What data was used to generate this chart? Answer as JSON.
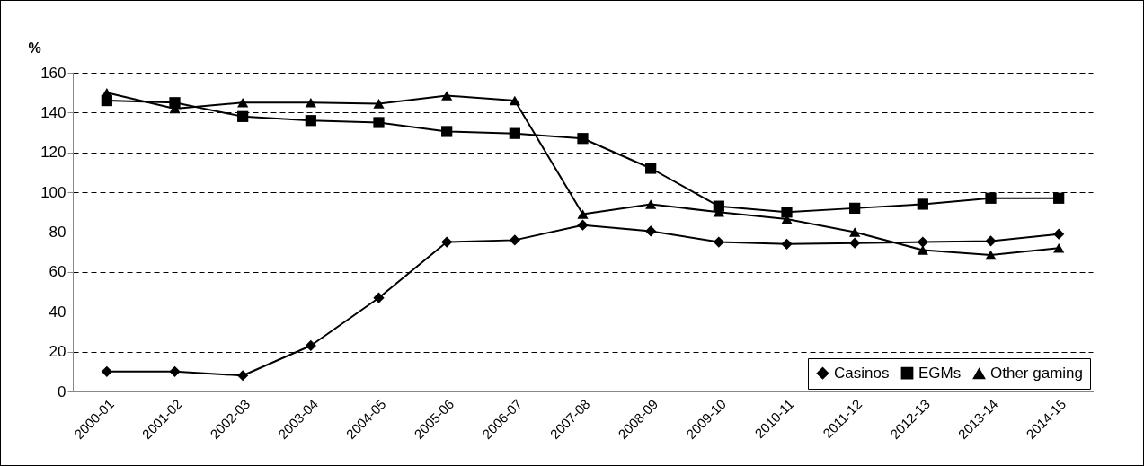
{
  "chart_data": {
    "type": "line",
    "ylabel": "%",
    "categories": [
      "2000-01",
      "2001-02",
      "2002-03",
      "2003-04",
      "2004-05",
      "2005-06",
      "2006-07",
      "2007-08",
      "2008-09",
      "2009-10",
      "2010-11",
      "2011-12",
      "2012-13",
      "2013-14",
      "2014-15"
    ],
    "series": [
      {
        "name": "Casinos",
        "color": "#000000",
        "marker": "diamond",
        "values": [
          10,
          10,
          8,
          23,
          47,
          75,
          76,
          83.5,
          80.5,
          75,
          74,
          74.5,
          75,
          75.5,
          79
        ]
      },
      {
        "name": "EGMs",
        "color": "#000000",
        "marker": "square",
        "values": [
          146,
          145,
          138,
          136,
          135,
          130.5,
          129.5,
          127,
          112,
          93,
          90,
          92,
          94,
          97,
          97
        ]
      },
      {
        "name": "Other gaming",
        "color": "#000000",
        "marker": "triangle",
        "values": [
          150,
          142,
          145,
          145,
          144.5,
          148.5,
          146,
          89,
          94,
          90,
          86.5,
          80,
          71,
          68.5,
          72
        ]
      }
    ],
    "ylim": [
      0,
      160
    ],
    "yticks": [
      0,
      20,
      40,
      60,
      80,
      100,
      120,
      140,
      160
    ],
    "grid": "y",
    "legend": "bottom right",
    "line_style": "solid"
  }
}
